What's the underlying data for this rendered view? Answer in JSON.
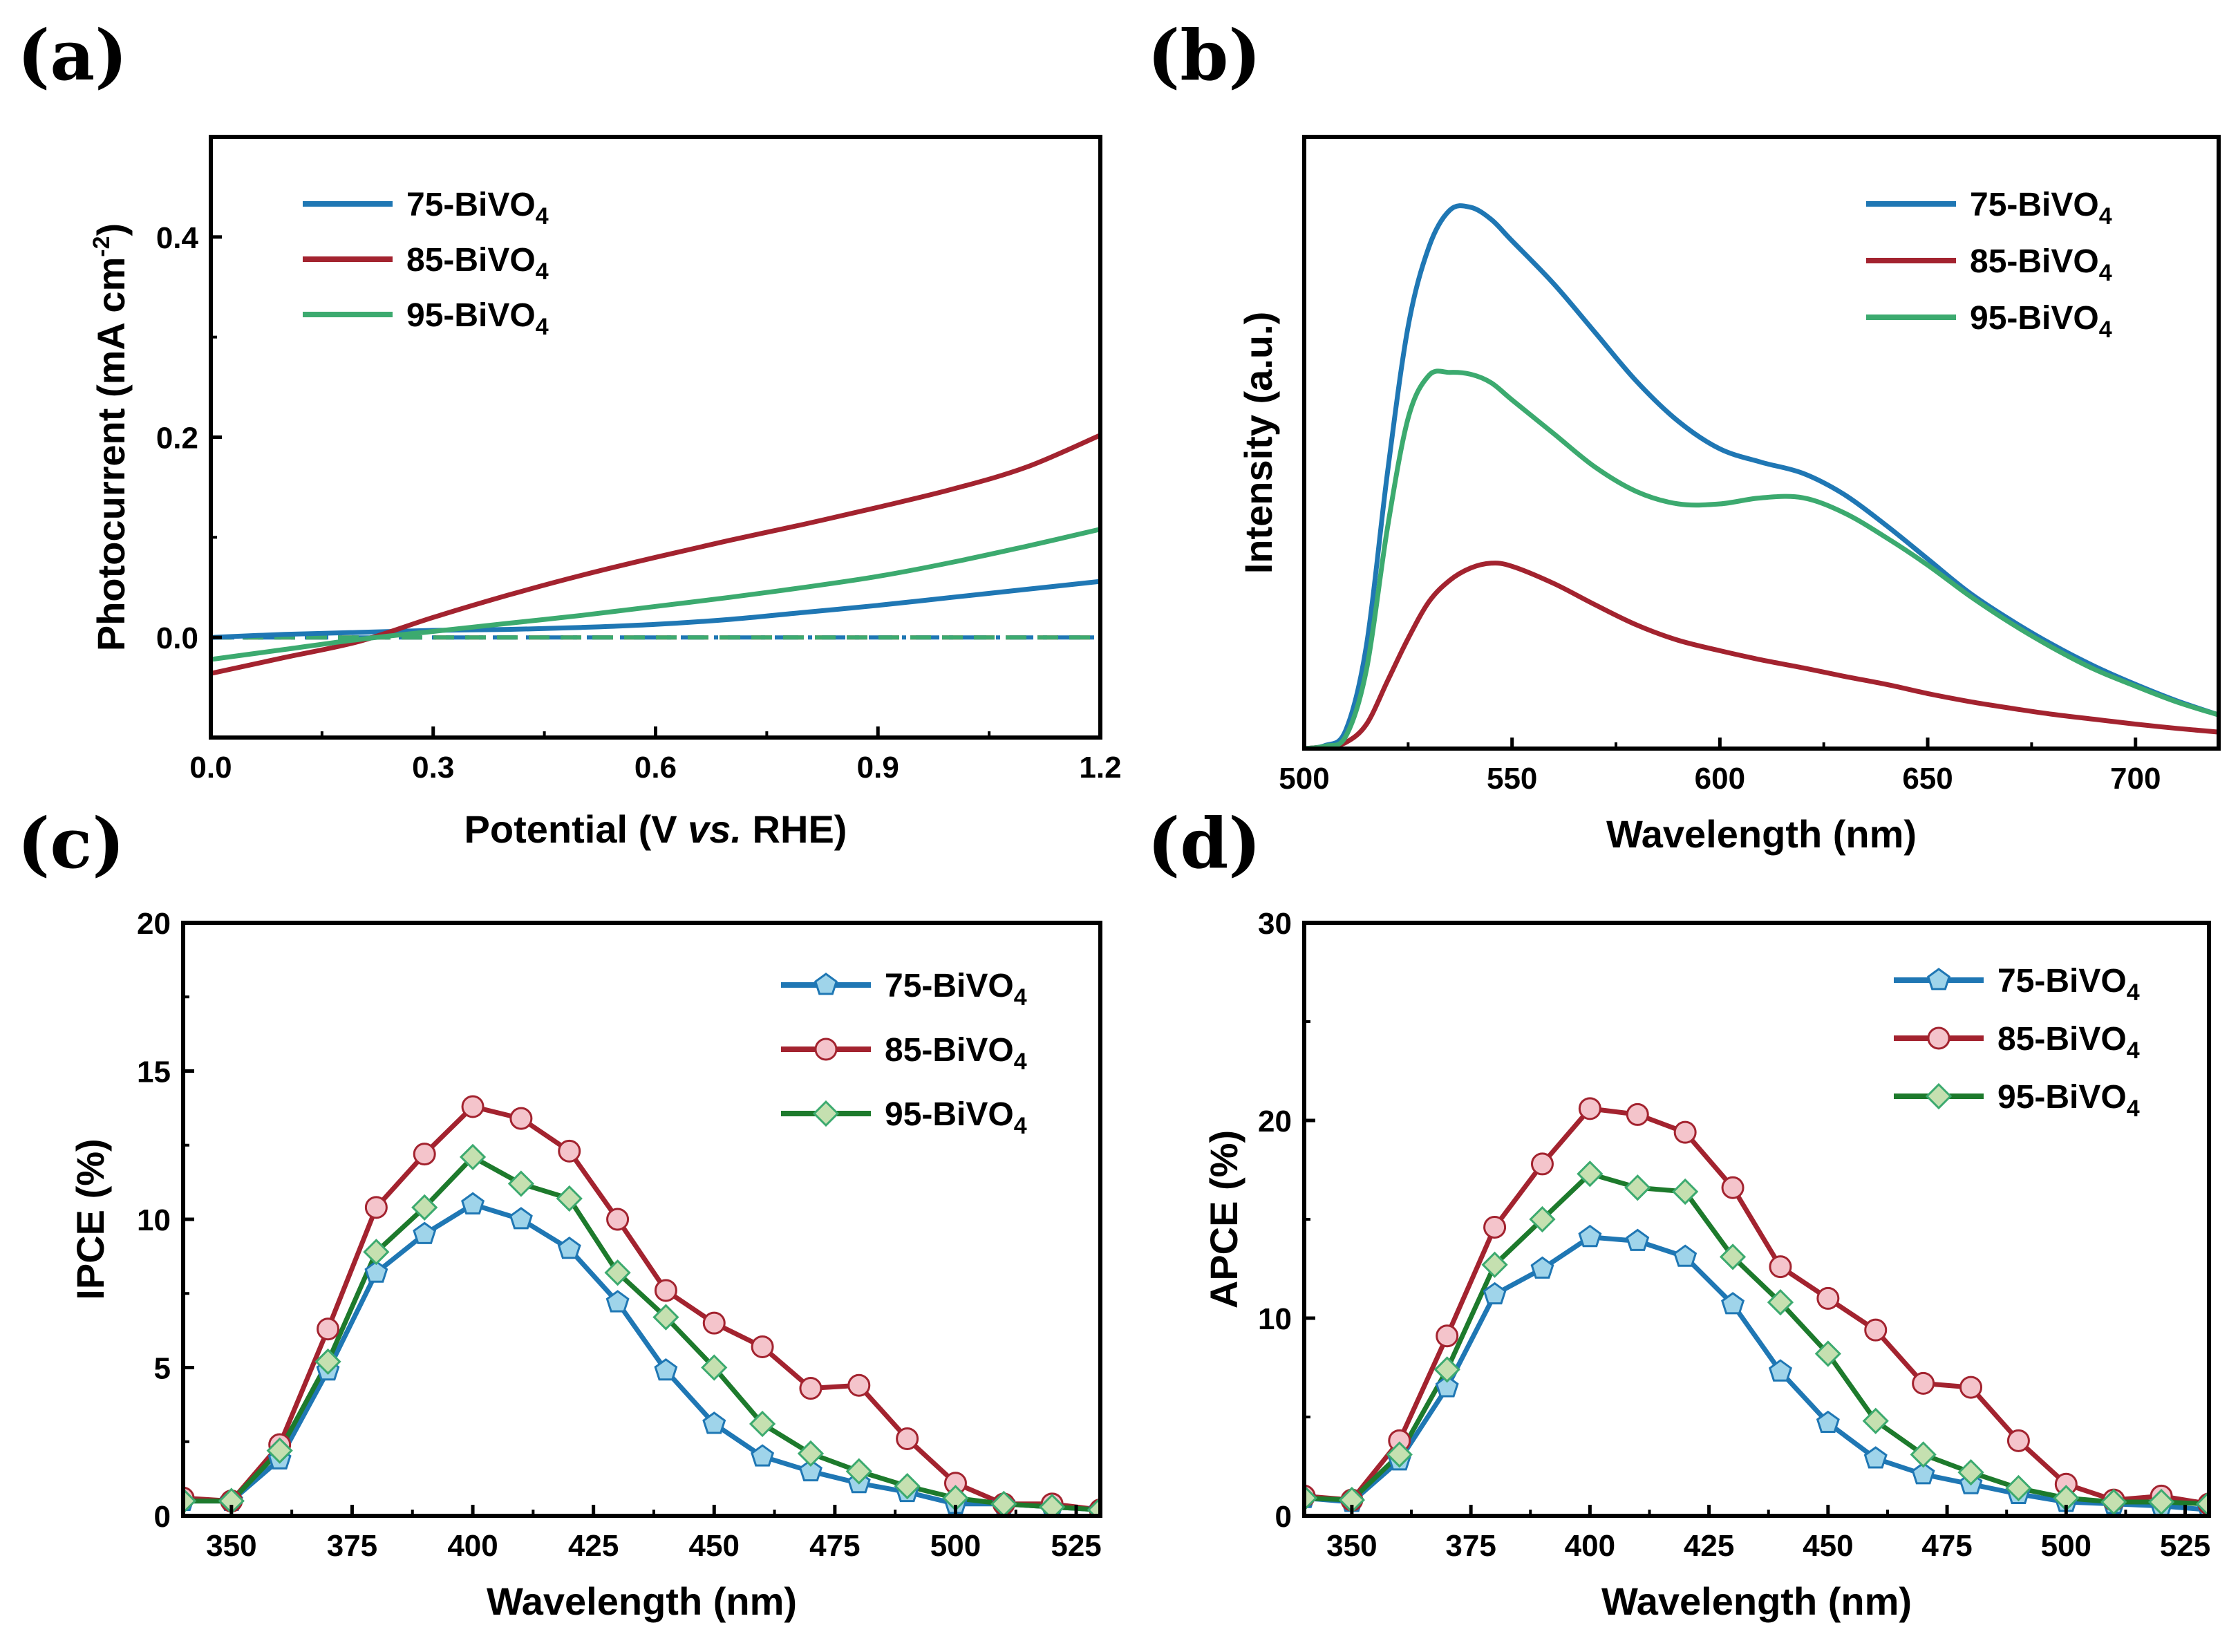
{
  "figure": {
    "panels": [
      {
        "letter": "(a)"
      },
      {
        "letter": "(b)"
      },
      {
        "letter": "(c)"
      },
      {
        "letter": "(d)"
      }
    ]
  },
  "colors": {
    "75": "#1f77b4",
    "85": "#a3232f",
    "95": "#3caa6f",
    "75_marker_fill": "#9fd4ea",
    "85_marker_fill": "#f4c4cb",
    "95_marker_fill": "#c5e0b0",
    "95_line_cd": "#1d7a2c"
  },
  "chart_data": [
    {
      "panel": "(a)",
      "type": "line",
      "xlabel": {
        "pre": "Potential (V ",
        "italic": "vs.",
        "post": " RHE)"
      },
      "ylabel": {
        "main": "Photocurrent (mA cm",
        "sup": "-2",
        "tail": ")"
      },
      "xlim": [
        0.0,
        1.2
      ],
      "ylim": [
        -0.1,
        0.5
      ],
      "xticks": [
        "0.0",
        "0.3",
        "0.6",
        "0.9",
        "1.2"
      ],
      "yticks": [
        "0.0",
        "0.2",
        "0.4"
      ],
      "legend_position": "top-left",
      "series": [
        {
          "name": "75-BiVO4",
          "label_main": "75-BiVO",
          "label_sub": "4",
          "color_key": "75",
          "x": [
            0,
            0.1,
            0.2,
            0.3,
            0.4,
            0.5,
            0.6,
            0.7,
            0.8,
            0.9,
            1.0,
            1.1,
            1.2
          ],
          "y": [
            0.0,
            0.003,
            0.005,
            0.007,
            0.008,
            0.01,
            0.013,
            0.018,
            0.025,
            0.032,
            0.04,
            0.048,
            0.056
          ]
        },
        {
          "name": "85-BiVO4",
          "label_main": "85-BiVO",
          "label_sub": "4",
          "color_key": "85",
          "x": [
            0,
            0.1,
            0.2,
            0.3,
            0.4,
            0.5,
            0.6,
            0.7,
            0.8,
            0.9,
            1.0,
            1.1,
            1.2
          ],
          "y": [
            -0.036,
            -0.02,
            -0.004,
            0.02,
            0.042,
            0.062,
            0.08,
            0.097,
            0.113,
            0.13,
            0.148,
            0.17,
            0.202
          ]
        },
        {
          "name": "95-BiVO4",
          "label_main": "95-BiVO",
          "label_sub": "4",
          "color_key": "95",
          "x": [
            0,
            0.1,
            0.2,
            0.3,
            0.4,
            0.5,
            0.6,
            0.7,
            0.8,
            0.9,
            1.0,
            1.1,
            1.2
          ],
          "y": [
            -0.022,
            -0.012,
            -0.002,
            0.006,
            0.014,
            0.022,
            0.031,
            0.04,
            0.05,
            0.061,
            0.075,
            0.091,
            0.108
          ]
        }
      ],
      "dark_current": {
        "x": [
          0,
          1.2
        ],
        "series": [
          {
            "color_key": "85",
            "y": [
              0.0,
              0.0
            ]
          },
          {
            "color_key": "75",
            "y": [
              0.0,
              0.0
            ]
          },
          {
            "color_key": "95",
            "y": [
              0.0,
              0.0
            ]
          }
        ]
      }
    },
    {
      "panel": "(b)",
      "type": "line",
      "xlabel": "Wavelength (nm)",
      "ylabel": "Intensity (a.u.)",
      "xlim": [
        500,
        720
      ],
      "ylim": [
        0,
        100
      ],
      "xticks": [
        "500",
        "550",
        "600",
        "650",
        "700"
      ],
      "yticks": [],
      "legend_position": "top-right",
      "series": [
        {
          "name": "75-BiVO4",
          "label_main": "75-BiVO",
          "label_sub": "4",
          "color_key": "75",
          "x": [
            500,
            505,
            510,
            515,
            520,
            525,
            530,
            535,
            540,
            545,
            550,
            560,
            570,
            580,
            590,
            600,
            610,
            620,
            630,
            640,
            650,
            660,
            670,
            680,
            690,
            700,
            710,
            720
          ],
          "y": [
            0,
            0.5,
            3,
            17,
            45,
            69,
            82,
            88,
            88.5,
            86.5,
            83,
            76,
            68,
            60,
            53.5,
            49,
            46.8,
            45,
            41.5,
            36.5,
            31,
            25.5,
            21,
            17,
            13.5,
            10.5,
            7.8,
            5.5
          ]
        },
        {
          "name": "85-BiVO4",
          "label_main": "85-BiVO",
          "label_sub": "4",
          "color_key": "85",
          "x": [
            500,
            505,
            510,
            515,
            520,
            525,
            530,
            535,
            540,
            545,
            550,
            560,
            570,
            580,
            590,
            600,
            610,
            620,
            630,
            640,
            650,
            660,
            670,
            680,
            690,
            700,
            710,
            720
          ],
          "y": [
            0,
            0.3,
            1,
            4,
            11,
            18,
            24,
            27.5,
            29.5,
            30.3,
            29.8,
            27,
            23.5,
            20.2,
            17.7,
            16,
            14.5,
            13.2,
            11.8,
            10.5,
            9,
            7.7,
            6.6,
            5.6,
            4.8,
            4,
            3.3,
            2.7
          ]
        },
        {
          "name": "95-BiVO4",
          "label_main": "95-BiVO",
          "label_sub": "4",
          "color_key": "95",
          "x": [
            500,
            505,
            510,
            515,
            520,
            525,
            530,
            535,
            540,
            545,
            550,
            560,
            570,
            580,
            590,
            600,
            610,
            620,
            630,
            640,
            650,
            660,
            670,
            680,
            690,
            700,
            710,
            720
          ],
          "y": [
            0,
            0.4,
            2,
            13,
            36,
            54,
            61,
            61.5,
            61.2,
            59.8,
            57,
            51.5,
            46,
            42,
            40,
            40,
            41,
            41,
            38.5,
            34.5,
            30,
            25,
            20.5,
            16.5,
            13,
            10.2,
            7.6,
            5.5
          ]
        }
      ]
    },
    {
      "panel": "(c)",
      "type": "line",
      "markers": true,
      "xlabel": "Wavelength (nm)",
      "ylabel": "IPCE (%)",
      "xlim": [
        340,
        530
      ],
      "ylim": [
        0,
        20
      ],
      "xticks": [
        "350",
        "375",
        "400",
        "425",
        "450",
        "475",
        "500",
        "525"
      ],
      "yticks": [
        "0",
        "5",
        "10",
        "15",
        "20"
      ],
      "legend_position": "top-right",
      "x": [
        340,
        350,
        360,
        370,
        380,
        390,
        400,
        410,
        420,
        430,
        440,
        450,
        460,
        470,
        480,
        490,
        500,
        510,
        520,
        530
      ],
      "series": [
        {
          "name": "75-BiVO4",
          "label_main": "75-BiVO",
          "label_sub": "4",
          "color_key": "75",
          "marker": "pentagon",
          "values": [
            0.5,
            0.5,
            1.9,
            4.9,
            8.2,
            9.5,
            10.5,
            10.0,
            9.0,
            7.2,
            4.9,
            3.1,
            2.0,
            1.5,
            1.1,
            0.8,
            0.4,
            0.4,
            0.3,
            0.2
          ]
        },
        {
          "name": "85-BiVO4",
          "label_main": "85-BiVO",
          "label_sub": "4",
          "color_key": "85",
          "marker": "circle",
          "values": [
            0.6,
            0.5,
            2.4,
            6.3,
            10.4,
            12.2,
            13.8,
            13.4,
            12.3,
            10.0,
            7.6,
            6.5,
            5.7,
            4.3,
            4.4,
            2.6,
            1.1,
            0.4,
            0.4,
            0.2
          ]
        },
        {
          "name": "95-BiVO4",
          "label_main": "95-BiVO",
          "label_sub": "4",
          "color_key": "95",
          "marker": "diamond",
          "values": [
            0.5,
            0.5,
            2.2,
            5.2,
            8.9,
            10.4,
            12.1,
            11.2,
            10.7,
            8.2,
            6.7,
            5.0,
            3.1,
            2.1,
            1.5,
            1.0,
            0.6,
            0.4,
            0.3,
            0.2
          ]
        }
      ]
    },
    {
      "panel": "(d)",
      "type": "line",
      "markers": true,
      "xlabel": "Wavelength (nm)",
      "ylabel": "APCE (%)",
      "xlim": [
        340,
        530
      ],
      "ylim": [
        0,
        30
      ],
      "xticks": [
        "350",
        "375",
        "400",
        "425",
        "450",
        "475",
        "500",
        "525"
      ],
      "yticks": [
        "0",
        "10",
        "20",
        "30"
      ],
      "legend_position": "top-right",
      "x": [
        340,
        350,
        360,
        370,
        380,
        390,
        400,
        410,
        420,
        430,
        440,
        450,
        460,
        470,
        480,
        490,
        500,
        510,
        520,
        530
      ],
      "series": [
        {
          "name": "75-BiVO4",
          "label_main": "75-BiVO",
          "label_sub": "4",
          "color_key": "75",
          "marker": "pentagon",
          "values": [
            0.9,
            0.7,
            2.8,
            6.5,
            11.2,
            12.5,
            14.1,
            13.9,
            13.1,
            10.7,
            7.3,
            4.7,
            2.9,
            2.1,
            1.6,
            1.1,
            0.7,
            0.6,
            0.5,
            0.3
          ]
        },
        {
          "name": "85-BiVO4",
          "label_main": "85-BiVO",
          "label_sub": "4",
          "color_key": "85",
          "marker": "circle",
          "values": [
            1.0,
            0.8,
            3.8,
            9.1,
            14.6,
            17.8,
            20.6,
            20.3,
            19.4,
            16.6,
            12.6,
            11.0,
            9.4,
            6.7,
            6.5,
            3.8,
            1.6,
            0.8,
            1.0,
            0.6
          ]
        },
        {
          "name": "95-BiVO4",
          "label_main": "95-BiVO",
          "label_sub": "4",
          "color_key": "95",
          "marker": "diamond",
          "values": [
            0.9,
            0.8,
            3.1,
            7.4,
            12.7,
            15.0,
            17.3,
            16.6,
            16.4,
            13.1,
            10.8,
            8.2,
            4.8,
            3.1,
            2.2,
            1.4,
            0.9,
            0.7,
            0.7,
            0.6
          ]
        }
      ]
    }
  ]
}
